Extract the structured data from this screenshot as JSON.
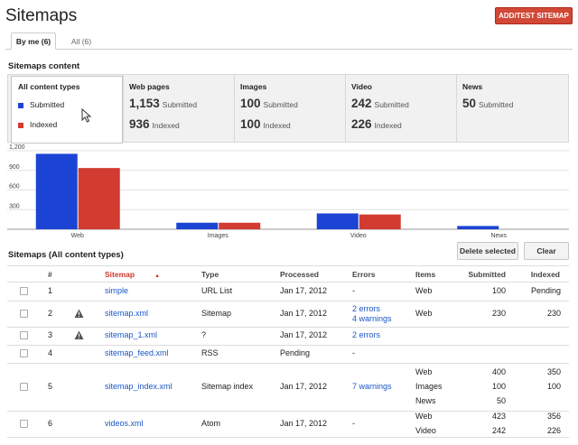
{
  "header": {
    "title": "Sitemaps",
    "add_button": "ADD/TEST SITEMAP"
  },
  "tabs": [
    {
      "label": "By me (6)",
      "active": true
    },
    {
      "label": "All (6)",
      "active": false
    }
  ],
  "content_section": {
    "heading": "Sitemaps content",
    "selected": {
      "title": "All content types",
      "legend_submitted": "Submitted",
      "legend_indexed": "Indexed"
    },
    "types": [
      {
        "name": "Web pages",
        "submitted": "1,153",
        "indexed": "936",
        "submitted_label": "Submitted",
        "indexed_label": "Indexed"
      },
      {
        "name": "Images",
        "submitted": "100",
        "indexed": "100",
        "submitted_label": "Submitted",
        "indexed_label": "Indexed"
      },
      {
        "name": "Video",
        "submitted": "242",
        "indexed": "226",
        "submitted_label": "Submitted",
        "indexed_label": "Indexed"
      },
      {
        "name": "News",
        "submitted": "50",
        "submitted_label": "Submitted"
      }
    ],
    "colors": {
      "submitted": "#1c44d4",
      "indexed": "#d13b30"
    }
  },
  "chart_data": {
    "type": "bar",
    "categories": [
      "Web",
      "Images",
      "Video",
      "News"
    ],
    "series": [
      {
        "name": "Submitted",
        "values": [
          1153,
          100,
          242,
          50
        ]
      },
      {
        "name": "Indexed",
        "values": [
          936,
          100,
          226,
          0
        ]
      }
    ],
    "yticks": [
      "1,200",
      "900",
      "600",
      "300"
    ],
    "ylim": [
      0,
      1200
    ],
    "grid": true,
    "legend": "left"
  },
  "table": {
    "heading": "Sitemaps (All content types)",
    "delete_button": "Delete selected",
    "clear_button": "Clear",
    "columns": {
      "num": "#",
      "sitemap": "Sitemap",
      "sort_icon": "▲",
      "type": "Type",
      "processed": "Processed",
      "errors": "Errors",
      "items": "Items",
      "submitted": "Submitted",
      "indexed": "Indexed"
    },
    "rows": [
      {
        "num": "1",
        "warn": false,
        "sitemap": "simple",
        "type": "URL List",
        "processed": "Jan 17, 2012",
        "errors": [
          "-"
        ],
        "errors_link": false,
        "items": [
          {
            "item": "Web",
            "submitted": "100",
            "indexed": "Pending"
          }
        ]
      },
      {
        "num": "2",
        "warn": true,
        "sitemap": "sitemap.xml",
        "type": "Sitemap",
        "processed": "Jan 17, 2012",
        "errors": [
          "2 errors",
          "4 warnings"
        ],
        "errors_link": true,
        "items": [
          {
            "item": "Web",
            "submitted": "230",
            "indexed": "230"
          }
        ]
      },
      {
        "num": "3",
        "warn": true,
        "sitemap": "sitemap_1.xml",
        "type": "?",
        "processed": "Jan 17, 2012",
        "errors": [
          "2 errors"
        ],
        "errors_link": true,
        "items": []
      },
      {
        "num": "4",
        "warn": false,
        "sitemap": "sitemap_feed.xml",
        "type": "RSS",
        "processed": "Pending",
        "errors": [
          "-"
        ],
        "errors_link": false,
        "items": []
      },
      {
        "num": "5",
        "warn": false,
        "sitemap": "sitemap_index.xml",
        "type": "Sitemap index",
        "processed": "Jan 17, 2012",
        "errors": [
          "7 warnings"
        ],
        "errors_link": true,
        "items": [
          {
            "item": "Web",
            "submitted": "400",
            "indexed": "350"
          },
          {
            "item": "Images",
            "submitted": "100",
            "indexed": "100"
          },
          {
            "item": "News",
            "submitted": "50",
            "indexed": ""
          }
        ]
      },
      {
        "num": "6",
        "warn": false,
        "sitemap": "videos.xml",
        "type": "Atom",
        "processed": "Jan 17, 2012",
        "errors": [
          "-"
        ],
        "errors_link": false,
        "items": [
          {
            "item": "Web",
            "submitted": "423",
            "indexed": "356"
          },
          {
            "item": "Video",
            "submitted": "242",
            "indexed": "226"
          }
        ]
      }
    ]
  }
}
